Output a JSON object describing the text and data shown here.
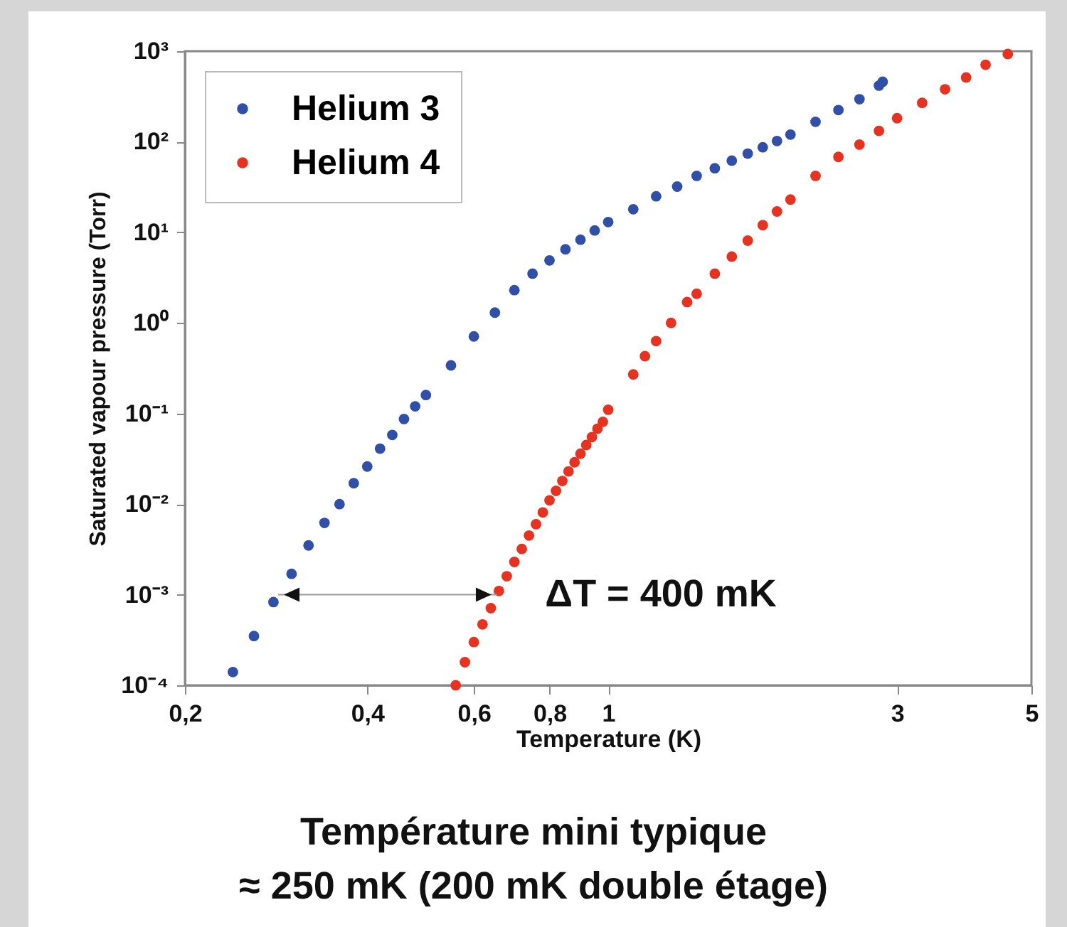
{
  "chart_data": {
    "type": "scatter",
    "xlabel": "Temperature (K)",
    "ylabel": "Saturated vapour pressure (Torr)",
    "log": "xy",
    "marker": "circle",
    "legend": "top left",
    "xlim": [
      0.2,
      5
    ],
    "xticks": [
      {
        "value": 0.2,
        "label": "0,2"
      },
      {
        "value": 0.4,
        "label": "0,4"
      },
      {
        "value": 0.6,
        "label": "0,6"
      },
      {
        "value": 0.8,
        "label": "0,8"
      },
      1,
      3,
      5
    ],
    "ylim": [
      0.0001,
      1000
    ],
    "yticks": [
      {
        "value": 0.0001,
        "label": "10⁻⁴"
      },
      {
        "value": 0.001,
        "label": "10⁻³"
      },
      {
        "value": 0.01,
        "label": "10⁻²"
      },
      {
        "value": 0.1,
        "label": "10⁻¹"
      },
      {
        "value": 1,
        "label": "10⁰"
      },
      {
        "value": 10,
        "label": "10¹"
      },
      {
        "value": 100,
        "label": "10²"
      },
      {
        "value": 1000,
        "label": "10³"
      }
    ],
    "series": [
      {
        "name": "Helium 3",
        "color": "#2f4fa8",
        "x": [
          0.24,
          0.26,
          0.28,
          0.3,
          0.32,
          0.34,
          0.36,
          0.38,
          0.4,
          0.42,
          0.44,
          0.46,
          0.48,
          0.5,
          0.55,
          0.6,
          0.65,
          0.7,
          0.75,
          0.8,
          0.85,
          0.9,
          0.95,
          1.0,
          1.1,
          1.2,
          1.3,
          1.4,
          1.5,
          1.6,
          1.7,
          1.8,
          1.9,
          2.0,
          2.2,
          2.4,
          2.6,
          2.8,
          2.84
        ],
        "values": [
          0.00014,
          0.00035,
          0.00083,
          0.0017,
          0.0035,
          0.0062,
          0.01,
          0.017,
          0.026,
          0.041,
          0.058,
          0.087,
          0.12,
          0.16,
          0.34,
          0.71,
          1.3,
          2.3,
          3.5,
          4.9,
          6.5,
          8.3,
          10.5,
          13,
          18,
          25,
          32,
          42,
          51,
          62,
          74,
          87,
          102,
          120,
          166,
          224,
          295,
          417,
          460
        ]
      },
      {
        "name": "Helium 4",
        "color": "#e8321f",
        "x": [
          0.56,
          0.58,
          0.6,
          0.62,
          0.64,
          0.66,
          0.68,
          0.7,
          0.72,
          0.74,
          0.76,
          0.78,
          0.8,
          0.82,
          0.84,
          0.86,
          0.88,
          0.9,
          0.92,
          0.94,
          0.96,
          0.98,
          1.0,
          1.1,
          1.15,
          1.2,
          1.27,
          1.35,
          1.4,
          1.5,
          1.6,
          1.7,
          1.8,
          1.9,
          2.0,
          2.2,
          2.4,
          2.6,
          2.8,
          3.0,
          3.3,
          3.6,
          3.9,
          4.2,
          4.57
        ],
        "values": [
          0.0001,
          0.00018,
          0.0003,
          0.00047,
          0.00071,
          0.0011,
          0.0016,
          0.0023,
          0.0032,
          0.0045,
          0.006,
          0.0081,
          0.011,
          0.014,
          0.018,
          0.023,
          0.029,
          0.036,
          0.045,
          0.055,
          0.068,
          0.081,
          0.11,
          0.27,
          0.43,
          0.63,
          1.0,
          1.7,
          2.1,
          3.5,
          5.4,
          8.1,
          12,
          17,
          23,
          42,
          68,
          93,
          132,
          182,
          269,
          380,
          513,
          708,
          930
        ]
      }
    ],
    "ref_lines": [
      {
        "axis": "y",
        "value": 0.001,
        "color": "#999999"
      }
    ],
    "annotations": [
      "ΔT = 400 mK",
      "Température mini typique",
      "≈ 250 mK (200 mK double étage)"
    ]
  }
}
